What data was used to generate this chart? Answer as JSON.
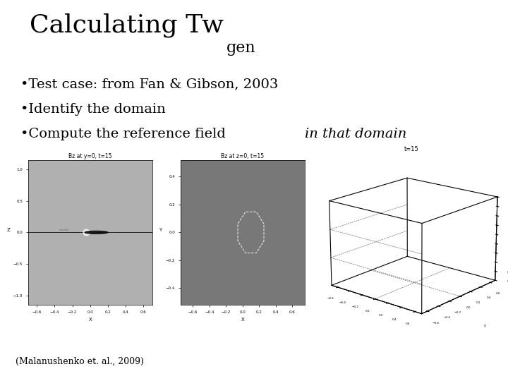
{
  "title_main": "Calculating Tw",
  "title_sub": "gen",
  "bullets": [
    "Test case: from Fan & Gibson, 2003",
    "Identify the domain",
    [
      "Compute the reference field ",
      "in that domain"
    ]
  ],
  "footnote": "(Malanushenko et. al., 2009)",
  "bg_color": "#ffffff",
  "plot1_title": "Bz at y=0, t=15",
  "plot2_title": "Bz at z=0, t=15",
  "plot3_title": "t=15",
  "plot1_bg": "#b0b0b0",
  "plot2_bg": "#787878",
  "title_fontsize": 26,
  "title_sub_fontsize": 16,
  "bullet_fontsize": 14,
  "footnote_fontsize": 9
}
